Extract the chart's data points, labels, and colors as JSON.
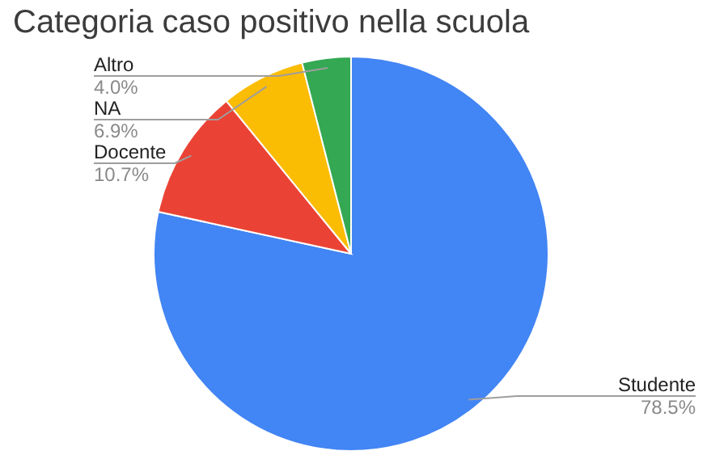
{
  "chart_data": {
    "type": "pie",
    "title": "Categoria caso positivo nella scuola",
    "categories": [
      "Studente",
      "Docente",
      "NA",
      "Altro"
    ],
    "values": [
      78.5,
      10.7,
      6.9,
      4.0
    ],
    "value_labels": [
      "78.5%",
      "10.7%",
      "6.9%",
      "4.0%"
    ],
    "colors": [
      "#4285f4",
      "#ea4335",
      "#fbbc04",
      "#34a853"
    ],
    "legend": false
  }
}
